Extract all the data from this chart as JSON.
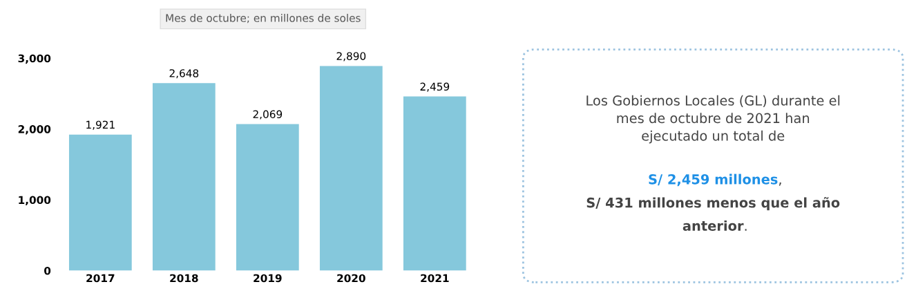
{
  "chart_data": [
    {
      "type": "bar",
      "subtitle": "Mes de octubre; en millones de soles",
      "categories": [
        "2017",
        "2018",
        "2019",
        "2020",
        "2021"
      ],
      "values": [
        1921,
        2648,
        2069,
        2890,
        2459
      ],
      "color": "#85c8dc",
      "ylim": [
        0,
        3000
      ],
      "yticks": [
        {
          "value": 0,
          "label": "0"
        },
        {
          "value": 1000,
          "label": "1,000"
        },
        {
          "value": 2000,
          "label": "2,000"
        },
        {
          "value": 3000,
          "label": "3,000"
        }
      ],
      "grid": false,
      "value_labels": [
        "1,921",
        "2,648",
        "2,069",
        "2,890",
        "2,459"
      ]
    },
    {
      "type": "other",
      "annotations": [
        "Los Gobiernos Locales (GL) durante el\nmes de octubre de 2021 han\nejecutado un total de",
        "S/ 2,459 millones",
        ",",
        "S/ 431 millones menos que el año",
        "anterior",
        "."
      ]
    }
  ]
}
